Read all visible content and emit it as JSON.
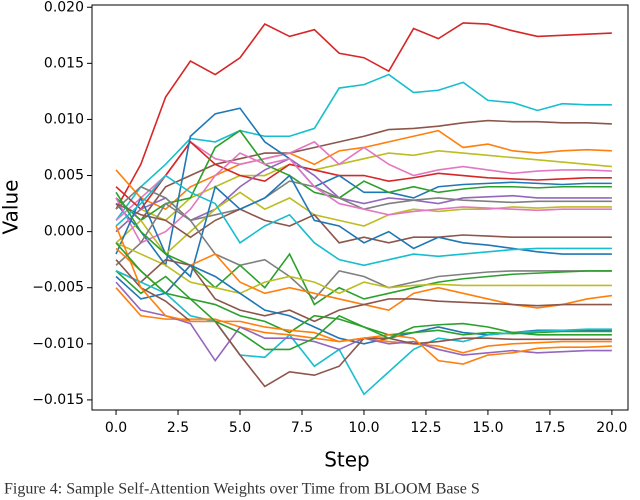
{
  "chart_data": {
    "type": "line",
    "x_label": "Step",
    "y_label": "Value",
    "caption": "Figure 4: Sample Self-Attention Weights over Time from BLOOM Base S",
    "x": [
      0,
      1,
      2,
      3,
      4,
      5,
      6,
      7,
      8,
      9,
      10,
      11,
      12,
      13,
      14,
      15,
      16,
      17,
      18,
      19,
      20
    ],
    "xlim": [
      -0.97,
      20.65
    ],
    "xticks": [
      {
        "value": 0,
        "label": "0.0"
      },
      {
        "value": 2.5,
        "label": "2.5"
      },
      {
        "value": 5,
        "label": "5.0"
      },
      {
        "value": 7.5,
        "label": "7.5"
      },
      {
        "value": 10,
        "label": "10.0"
      },
      {
        "value": 12.5,
        "label": "12.5"
      },
      {
        "value": 15,
        "label": "15.0"
      },
      {
        "value": 17.5,
        "label": "17.5"
      },
      {
        "value": 20,
        "label": "20.0"
      }
    ],
    "ylim": [
      -0.0159,
      0.0202
    ],
    "yticks": [
      {
        "value": -0.015,
        "label": "−0.015"
      },
      {
        "value": -0.01,
        "label": "−0.010"
      },
      {
        "value": -0.005,
        "label": "−0.005"
      },
      {
        "value": 0,
        "label": "0.000"
      },
      {
        "value": 0.005,
        "label": "0.005"
      },
      {
        "value": 0.01,
        "label": "0.010"
      },
      {
        "value": 0.015,
        "label": "0.015"
      },
      {
        "value": 0.02,
        "label": "0.020"
      }
    ],
    "series": [
      {
        "color": "#d62728",
        "values": [
          0.002,
          0.006,
          0.012,
          0.0152,
          0.014,
          0.0155,
          0.0185,
          0.0174,
          0.018,
          0.0159,
          0.0155,
          0.0143,
          0.0181,
          0.0172,
          0.0186,
          0.0185,
          0.0179,
          0.0174,
          0.0175,
          0.0176,
          0.0177
        ]
      },
      {
        "color": "#17becf",
        "values": [
          0.001,
          0.004,
          0.006,
          0.0083,
          0.008,
          0.009,
          0.0085,
          0.0085,
          0.0092,
          0.0128,
          0.0131,
          0.014,
          0.0124,
          0.0126,
          0.0133,
          0.0117,
          0.0115,
          0.0108,
          0.0114,
          0.0113,
          0.0113
        ]
      },
      {
        "color": "#8c564b",
        "values": [
          0.003,
          0.001,
          0.004,
          0.005,
          0.006,
          0.0065,
          0.007,
          0.007,
          0.0075,
          0.008,
          0.0085,
          0.0091,
          0.0092,
          0.0094,
          0.0097,
          0.0099,
          0.0098,
          0.0098,
          0.0097,
          0.0097,
          0.0096
        ]
      },
      {
        "color": "#ff7f0e",
        "values": [
          0.0055,
          0.003,
          0.002,
          0.004,
          0.005,
          0.006,
          0.0065,
          0.007,
          0.006,
          0.0072,
          0.0075,
          0.008,
          0.0085,
          0.009,
          0.0075,
          0.0078,
          0.0072,
          0.007,
          0.0072,
          0.0073,
          0.0072
        ]
      },
      {
        "color": "#bcbd22",
        "values": [
          0.0,
          0.002,
          0.001,
          0.003,
          0.004,
          0.005,
          0.005,
          0.006,
          0.0055,
          0.006,
          0.0065,
          0.007,
          0.0068,
          0.0072,
          0.007,
          0.0068,
          0.0066,
          0.0064,
          0.0062,
          0.006,
          0.0058
        ]
      },
      {
        "color": "#e377c2",
        "values": [
          0.001,
          0.003,
          0.005,
          0.008,
          0.0065,
          0.006,
          0.0065,
          0.007,
          0.008,
          0.006,
          0.0075,
          0.006,
          0.005,
          0.0055,
          0.0058,
          0.0055,
          0.0052,
          0.0054,
          0.0055,
          0.0055,
          0.0054
        ]
      },
      {
        "color": "#d62728",
        "values": [
          0.004,
          0.002,
          0.005,
          0.008,
          0.006,
          0.005,
          0.0045,
          0.006,
          0.0055,
          0.005,
          0.005,
          0.0045,
          0.0048,
          0.0052,
          0.005,
          0.0048,
          0.0047,
          0.0046,
          0.0047,
          0.0048,
          0.0048
        ]
      },
      {
        "color": "#1f77b4",
        "values": [
          0.0025,
          0.0,
          -0.003,
          0.0085,
          0.0105,
          0.011,
          0.008,
          0.0065,
          0.004,
          0.005,
          0.0035,
          0.0035,
          0.003,
          0.004,
          0.0042,
          0.0043,
          0.0044,
          0.0043,
          0.0042,
          0.0043,
          0.0043
        ]
      },
      {
        "color": "#2ca02c",
        "values": [
          0.003,
          0.001,
          0.0025,
          0.003,
          0.0075,
          0.009,
          0.006,
          0.005,
          0.0035,
          0.003,
          0.0045,
          0.0035,
          0.004,
          0.0035,
          0.0038,
          0.004,
          0.004,
          0.0039,
          0.004,
          0.004,
          0.004
        ]
      },
      {
        "color": "#9467bd",
        "values": [
          0.0,
          0.002,
          0.003,
          0.001,
          0.002,
          0.004,
          0.0055,
          0.0065,
          0.005,
          0.003,
          0.0025,
          0.003,
          0.0028,
          0.0025,
          0.003,
          0.0031,
          0.0032,
          0.003,
          0.003,
          0.003,
          0.003
        ]
      },
      {
        "color": "#7f7f7f",
        "values": [
          0.002,
          0.004,
          0.003,
          0.001,
          0.0015,
          0.002,
          0.003,
          0.0045,
          0.004,
          0.003,
          0.002,
          0.0025,
          0.0028,
          0.003,
          0.0028,
          0.0027,
          0.0026,
          0.0027,
          0.0027,
          0.0027,
          0.0027
        ]
      },
      {
        "color": "#bcbd22",
        "values": [
          -0.001,
          0.001,
          -0.002,
          0.0,
          0.002,
          0.0035,
          0.002,
          0.003,
          0.0015,
          0.001,
          0.0005,
          0.0015,
          0.002,
          0.0018,
          0.002,
          0.002,
          0.0022,
          0.0021,
          0.0022,
          0.0022,
          0.0022
        ]
      },
      {
        "color": "#e377c2",
        "values": [
          0.003,
          -0.001,
          0.0,
          0.002,
          0.005,
          0.007,
          0.006,
          0.0065,
          0.004,
          0.0025,
          0.002,
          0.0015,
          0.0018,
          0.002,
          0.0022,
          0.0021,
          0.002,
          0.0019,
          0.002,
          0.002,
          0.002
        ]
      },
      {
        "color": "#8c564b",
        "values": [
          0.0025,
          0.0015,
          0.001,
          -0.0005,
          0.001,
          0.002,
          0.001,
          0.0005,
          0.0015,
          -0.001,
          -0.0005,
          -0.001,
          -0.0005,
          -0.0005,
          -0.0003,
          -0.0004,
          -0.0005,
          -0.0005,
          -0.0005,
          -0.0005,
          -0.0005
        ]
      },
      {
        "color": "#1f77b4",
        "values": [
          -0.002,
          0.003,
          -0.002,
          -0.004,
          0.004,
          0.002,
          0.003,
          0.005,
          0.001,
          0.0005,
          -0.001,
          0.0,
          -0.0015,
          -0.0005,
          -0.001,
          -0.0012,
          -0.0015,
          -0.0018,
          -0.002,
          -0.002,
          -0.002
        ]
      },
      {
        "color": "#17becf",
        "values": [
          0.0005,
          0.0025,
          0.005,
          0.0035,
          0.0025,
          -0.001,
          0.0005,
          0.0015,
          -0.001,
          -0.0025,
          -0.003,
          -0.0025,
          -0.002,
          -0.0022,
          -0.002,
          -0.0018,
          -0.0016,
          -0.0015,
          -0.0015,
          -0.0015,
          -0.0015
        ]
      },
      {
        "color": "#7f7f7f",
        "values": [
          -0.003,
          -0.001,
          0.0025,
          0.001,
          -0.002,
          -0.003,
          -0.0025,
          -0.004,
          -0.006,
          -0.0035,
          -0.004,
          -0.005,
          -0.0045,
          -0.004,
          -0.0038,
          -0.0036,
          -0.0035,
          -0.0035,
          -0.0035,
          -0.0035,
          -0.0035
        ]
      },
      {
        "color": "#2ca02c",
        "values": [
          0.0035,
          0.0,
          -0.002,
          -0.003,
          -0.005,
          -0.003,
          -0.005,
          -0.002,
          -0.0065,
          -0.005,
          -0.006,
          -0.0055,
          -0.005,
          -0.0045,
          -0.0042,
          -0.004,
          -0.0038,
          -0.0037,
          -0.0036,
          -0.0035,
          -0.0035
        ]
      },
      {
        "color": "#bcbd22",
        "values": [
          -0.001,
          -0.002,
          -0.003,
          -0.0045,
          -0.005,
          -0.0055,
          -0.0045,
          -0.004,
          -0.0045,
          -0.0055,
          -0.0045,
          -0.005,
          -0.0048,
          -0.0047,
          -0.0048,
          -0.0048,
          -0.0048,
          -0.0048,
          -0.0048,
          -0.0048,
          -0.0048
        ]
      },
      {
        "color": "#ff7f0e",
        "values": [
          -0.0015,
          -0.0035,
          -0.0055,
          -0.003,
          -0.002,
          -0.0045,
          -0.0055,
          -0.005,
          -0.0055,
          -0.006,
          -0.0065,
          -0.007,
          -0.0055,
          -0.005,
          -0.0055,
          -0.006,
          -0.0065,
          -0.0068,
          -0.0065,
          -0.006,
          -0.0057
        ]
      },
      {
        "color": "#8c564b",
        "values": [
          -0.0035,
          -0.0045,
          -0.0025,
          -0.003,
          -0.006,
          -0.007,
          -0.0075,
          -0.007,
          -0.008,
          -0.007,
          -0.0065,
          -0.006,
          -0.006,
          -0.0062,
          -0.0063,
          -0.0064,
          -0.0065,
          -0.0066,
          -0.0065,
          -0.0065,
          -0.0065
        ]
      },
      {
        "color": "#1f77b4",
        "values": [
          -0.004,
          -0.006,
          -0.0055,
          -0.003,
          -0.004,
          -0.0055,
          -0.007,
          -0.0075,
          -0.0085,
          -0.0095,
          -0.01,
          -0.0095,
          -0.009,
          -0.0085,
          -0.009,
          -0.0092,
          -0.009,
          -0.0088,
          -0.0088,
          -0.0088,
          -0.0088
        ]
      },
      {
        "color": "#2ca02c",
        "values": [
          -0.0035,
          -0.0055,
          -0.004,
          -0.006,
          -0.0065,
          -0.0075,
          -0.008,
          -0.009,
          -0.0075,
          -0.0078,
          -0.0085,
          -0.0092,
          -0.009,
          -0.0088,
          -0.0092,
          -0.009,
          -0.0091,
          -0.009,
          -0.0089,
          -0.0089,
          -0.0089
        ]
      },
      {
        "color": "#17becf",
        "values": [
          -0.0035,
          -0.0045,
          -0.0055,
          -0.0075,
          -0.008,
          -0.011,
          -0.0112,
          -0.0092,
          -0.012,
          -0.0105,
          -0.0145,
          -0.0125,
          -0.0105,
          -0.0095,
          -0.0098,
          -0.0092,
          -0.009,
          -0.0089,
          -0.0088,
          -0.0087,
          -0.0087
        ]
      },
      {
        "color": "#ff7f0e",
        "values": [
          -0.005,
          -0.0075,
          -0.0078,
          -0.0078,
          -0.0078,
          -0.0085,
          -0.009,
          -0.0092,
          -0.0095,
          -0.0098,
          -0.0095,
          -0.0098,
          -0.01,
          -0.0102,
          -0.0108,
          -0.0102,
          -0.01,
          -0.0099,
          -0.0098,
          -0.0098,
          -0.0098
        ]
      },
      {
        "color": "#9467bd",
        "values": [
          -0.0045,
          -0.007,
          -0.0075,
          -0.0082,
          -0.0115,
          -0.0085,
          -0.0095,
          -0.0095,
          -0.0098,
          -0.0105,
          -0.0095,
          -0.01,
          -0.0098,
          -0.0105,
          -0.011,
          -0.0108,
          -0.0106,
          -0.0108,
          -0.0107,
          -0.0106,
          -0.0106
        ]
      },
      {
        "color": "#8c564b",
        "values": [
          -0.0025,
          -0.005,
          -0.0062,
          -0.008,
          -0.008,
          -0.011,
          -0.0138,
          -0.0125,
          -0.0128,
          -0.012,
          -0.0095,
          -0.0095,
          -0.01,
          -0.0098,
          -0.0095,
          -0.0095,
          -0.0096,
          -0.0096,
          -0.0096,
          -0.0096,
          -0.0096
        ]
      },
      {
        "color": "#ff7f0e",
        "values": [
          0.0005,
          -0.005,
          -0.0075,
          -0.008,
          -0.008,
          -0.008,
          -0.0085,
          -0.0088,
          -0.009,
          -0.0098,
          -0.0095,
          -0.0092,
          -0.0095,
          -0.0115,
          -0.0118,
          -0.011,
          -0.0108,
          -0.0104,
          -0.0103,
          -0.0103,
          -0.0102
        ]
      },
      {
        "color": "#2ca02c",
        "values": [
          -0.001,
          -0.0035,
          -0.0055,
          -0.006,
          -0.008,
          -0.009,
          -0.0105,
          -0.0105,
          -0.0095,
          -0.0075,
          -0.0085,
          -0.0095,
          -0.0085,
          -0.0083,
          -0.0082,
          -0.0085,
          -0.009,
          -0.0092,
          -0.0092,
          -0.0092,
          -0.0092
        ]
      }
    ]
  }
}
